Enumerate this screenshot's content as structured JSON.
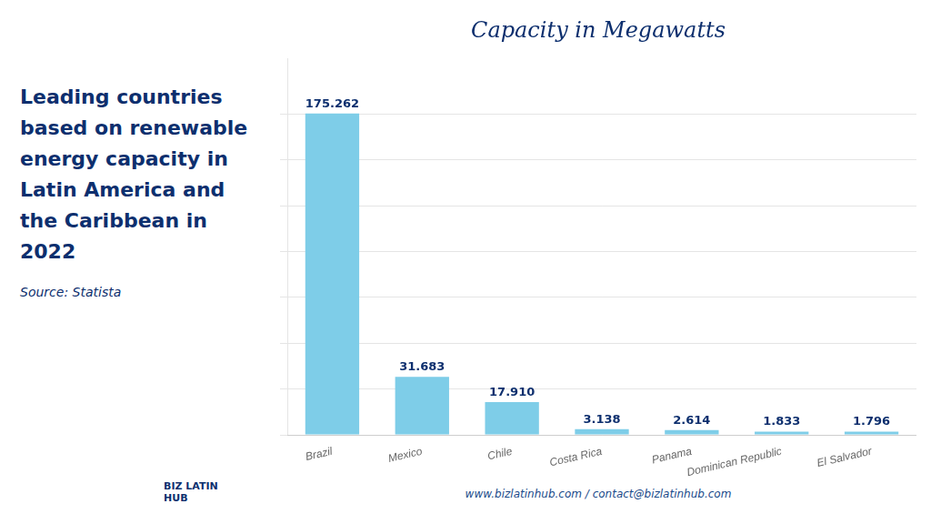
{
  "chart_data": {
    "type": "bar",
    "title": "Capacity in Megawatts",
    "subtitle": "Leading countries based on renewable energy capacity in Latin America and the Caribbean in 2022",
    "annotations": [
      "Source: Statista",
      "BIZ LATIN HUB",
      "www.bizlatinhub.com / contact@bizlatinhub.com"
    ],
    "categories": [
      "Brazil",
      "Mexico",
      "Chile",
      "Costa Rica",
      "Panama",
      "Dominican Republic",
      "El Salvador"
    ],
    "values": [
      175.262,
      31.683,
      17.91,
      3.138,
      2.614,
      1.833,
      1.796
    ],
    "value_labels": [
      "175.262",
      "31.683",
      "17.910",
      "3.138",
      "2.614",
      "1.833",
      "1.796"
    ],
    "data_labels": true,
    "color": "#7ECDE8",
    "ylim": [
      0,
      205
    ],
    "yticks": [
      0,
      25,
      50,
      75,
      100,
      125,
      150,
      175
    ],
    "grid": true,
    "tick_labels": "x"
  }
}
